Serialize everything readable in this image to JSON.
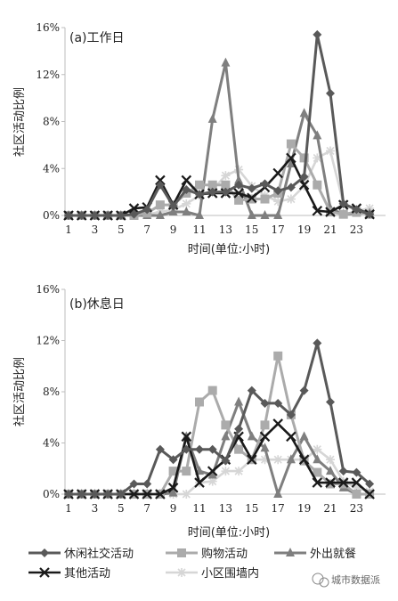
{
  "chart_data": [
    {
      "type": "line",
      "title": "(a)工作日",
      "xlabel": "时间(单位:小时)",
      "ylabel": "社区活动比例",
      "x": [
        1,
        2,
        3,
        4,
        5,
        6,
        7,
        8,
        9,
        10,
        11,
        12,
        13,
        14,
        15,
        16,
        17,
        18,
        19,
        20,
        21,
        22,
        23,
        24
      ],
      "xticks": [
        "1",
        "3",
        "5",
        "7",
        "9",
        "11",
        "13",
        "15",
        "17",
        "19",
        "21",
        "23"
      ],
      "yticks": [
        "0%",
        "4%",
        "8%",
        "12%",
        "16%"
      ],
      "ylim": [
        0,
        16
      ],
      "series": [
        {
          "name": "休闲社交活动",
          "values": [
            0,
            0,
            0,
            0,
            0,
            0.1,
            0.5,
            2.6,
            0.8,
            2.2,
            1.8,
            2.0,
            2.0,
            2.6,
            2.3,
            2.7,
            2.1,
            2.4,
            3.3,
            15.4,
            10.4,
            1.0,
            0.5,
            0.1
          ]
        },
        {
          "name": "购物活动",
          "values": [
            0,
            0,
            0,
            0,
            0,
            0,
            0.2,
            0.9,
            0.9,
            1.9,
            2.6,
            2.6,
            2.6,
            1.3,
            1.4,
            1.4,
            1.9,
            6.1,
            4.9,
            2.6,
            0.3,
            0.1,
            0.3,
            0.1
          ]
        },
        {
          "name": "外出就餐",
          "values": [
            0,
            0,
            0,
            0,
            0,
            0,
            0,
            0,
            0.3,
            0.3,
            0,
            8.2,
            13.0,
            3.0,
            0,
            0,
            0,
            4.4,
            8.7,
            6.8,
            0.6,
            0.1,
            0.2,
            0.2
          ]
        },
        {
          "name": "其他活动",
          "values": [
            0,
            0,
            0,
            0,
            0,
            0.6,
            0.7,
            3.0,
            0.9,
            3.0,
            1.8,
            1.9,
            1.9,
            1.9,
            1.5,
            2.4,
            3.6,
            4.9,
            2.6,
            0.4,
            0.3,
            0.9,
            0.6,
            0.1
          ]
        },
        {
          "name": "小区围墙内",
          "values": [
            0,
            0,
            0,
            0,
            0,
            0,
            0.1,
            0.3,
            0.5,
            1.0,
            1.7,
            2.2,
            3.4,
            3.9,
            2.5,
            1.7,
            1.2,
            1.4,
            2.5,
            4.9,
            5.5,
            1.0,
            0.4,
            0.6
          ]
        }
      ]
    },
    {
      "type": "line",
      "title": "(b)休息日",
      "xlabel": "时间(单位:小时)",
      "ylabel": "社区活动比例",
      "x": [
        1,
        2,
        3,
        4,
        5,
        6,
        7,
        8,
        9,
        10,
        11,
        12,
        13,
        14,
        15,
        16,
        17,
        18,
        19,
        20,
        21,
        22,
        23,
        24
      ],
      "xticks": [
        "1",
        "3",
        "5",
        "7",
        "9",
        "11",
        "13",
        "15",
        "17",
        "19",
        "21",
        "23"
      ],
      "yticks": [
        "0%",
        "4%",
        "8%",
        "12%",
        "16%"
      ],
      "ylim": [
        0,
        16
      ],
      "series": [
        {
          "name": "休闲社交活动",
          "values": [
            0,
            0,
            0,
            0,
            0,
            0.8,
            0.8,
            3.5,
            2.7,
            3.5,
            3.5,
            3.5,
            2.6,
            5.1,
            8.1,
            7.1,
            7.1,
            6.2,
            8.1,
            11.8,
            7.2,
            1.8,
            1.7,
            0.8
          ]
        },
        {
          "name": "购物活动",
          "values": [
            0,
            0,
            0,
            0,
            0,
            0,
            0,
            0,
            1.8,
            1.8,
            7.2,
            8.1,
            5.4,
            3.5,
            2.7,
            5.4,
            10.8,
            6.2,
            2.6,
            1.7,
            0.8,
            0.8,
            0,
            0
          ]
        },
        {
          "name": "外出就餐",
          "values": [
            0,
            0,
            0,
            0,
            0,
            0,
            0,
            0,
            0.1,
            4.5,
            1.8,
            1.5,
            4.5,
            7.2,
            4.5,
            3.6,
            0,
            2.7,
            4.5,
            2.7,
            1.8,
            0.5,
            0,
            0
          ]
        },
        {
          "name": "其他活动",
          "values": [
            0,
            0,
            0,
            0,
            0,
            0,
            0,
            0,
            0.5,
            4.5,
            0.9,
            1.8,
            2.7,
            4.5,
            2.7,
            4.5,
            5.5,
            4.5,
            2.7,
            0.9,
            0.9,
            0.9,
            0.9,
            0
          ]
        },
        {
          "name": "小区围墙内",
          "values": [
            0,
            0,
            0,
            0,
            0,
            0,
            0,
            0,
            0,
            0,
            0.9,
            1.0,
            1.8,
            1.8,
            2.7,
            2.7,
            2.7,
            2.7,
            2.7,
            3.5,
            2.7,
            1.0,
            0.5,
            0.2
          ]
        }
      ]
    }
  ],
  "legend": [
    {
      "name": "休闲社交活动"
    },
    {
      "name": "购物活动"
    },
    {
      "name": "外出就餐"
    },
    {
      "name": "其他活动"
    },
    {
      "name": "小区围墙内"
    }
  ],
  "watermark": "城市数据派",
  "colors": {
    "休闲社交活动": "#595959",
    "购物活动": "#ababab",
    "外出就餐": "#7f7f7f",
    "其他活动": "#1a1a1a",
    "小区围墙内": "#d6d6d6"
  }
}
